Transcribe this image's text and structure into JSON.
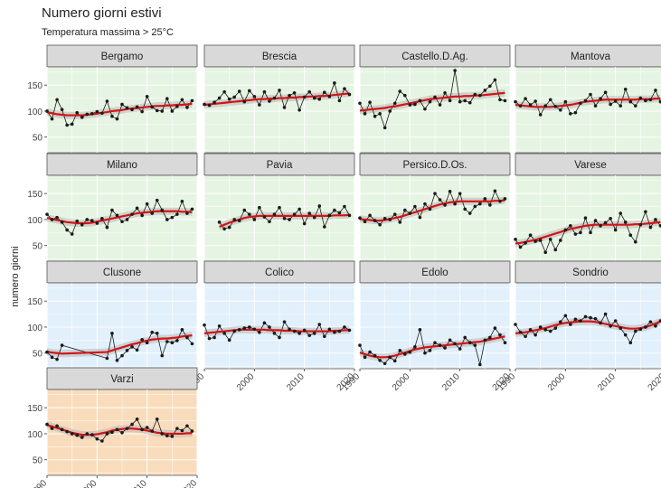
{
  "title": "Numero giorni estivi",
  "subtitle": "Temperatura massima > 25°C",
  "ylabel": "numero giorni",
  "colors": {
    "strip_bg": "#d9d9d9",
    "green_panel": "#e6f4e3",
    "blue_panel": "#e1f0fb",
    "orange_panel": "#f9dcbc",
    "line": "#1a1a1a",
    "smooth": "#d31414",
    "ribbon": "#b8b8b8",
    "grid": "#ffffff"
  },
  "chart_data": {
    "type": "line",
    "facets": true,
    "xlim": [
      1990,
      2020
    ],
    "ylim": [
      20,
      185
    ],
    "x_ticks": [
      1990,
      2000,
      2010,
      2020
    ],
    "y_ticks": [
      50,
      100,
      150
    ],
    "grid": true,
    "panels": [
      {
        "name": "Bergamo",
        "group": "green",
        "x": [
          1990,
          1991,
          1992,
          1993,
          1994,
          1995,
          1996,
          1997,
          1998,
          1999,
          2000,
          2001,
          2002,
          2003,
          2004,
          2005,
          2006,
          2007,
          2008,
          2009,
          2010,
          2011,
          2012,
          2013,
          2014,
          2015,
          2016,
          2017,
          2018,
          2019
        ],
        "values": [
          100,
          85,
          122,
          103,
          73,
          75,
          97,
          88,
          94,
          95,
          99,
          96,
          119,
          90,
          85,
          113,
          106,
          103,
          108,
          99,
          128,
          108,
          101,
          100,
          124,
          100,
          109,
          122,
          107,
          120
        ],
        "smooth": [
          98,
          96,
          94,
          93,
          92,
          92,
          92,
          92,
          93,
          94,
          95,
          97,
          98,
          100,
          101,
          102,
          104,
          105,
          106,
          107,
          108,
          109,
          110,
          110,
          111,
          111,
          112,
          112,
          113,
          114
        ]
      },
      {
        "name": "Brescia",
        "group": "green",
        "x": [
          1990,
          1991,
          1992,
          1993,
          1994,
          1995,
          1996,
          1997,
          1998,
          1999,
          2000,
          2001,
          2002,
          2003,
          2004,
          2005,
          2006,
          2007,
          2008,
          2009,
          2010,
          2011,
          2012,
          2013,
          2014,
          2015,
          2016,
          2017,
          2018,
          2019
        ],
        "values": [
          113,
          111,
          117,
          125,
          137,
          123,
          127,
          138,
          118,
          139,
          128,
          112,
          137,
          119,
          125,
          140,
          107,
          130,
          135,
          102,
          127,
          137,
          125,
          123,
          136,
          128,
          154,
          120,
          143,
          132
        ],
        "smooth": [
          112,
          113,
          114,
          115,
          116,
          117,
          118,
          119,
          120,
          121,
          122,
          123,
          123,
          124,
          124,
          125,
          125,
          126,
          126,
          127,
          127,
          128,
          128,
          129,
          129,
          130,
          131,
          132,
          133,
          134
        ]
      },
      {
        "name": "Castello.D.Ag.",
        "group": "green",
        "x": [
          1990,
          1991,
          1992,
          1993,
          1994,
          1995,
          1996,
          1997,
          1998,
          1999,
          2000,
          2001,
          2002,
          2003,
          2004,
          2005,
          2006,
          2007,
          2008,
          2009,
          2010,
          2011,
          2012,
          2013,
          2014,
          2015,
          2016,
          2017,
          2018,
          2019
        ],
        "values": [
          115,
          95,
          117,
          90,
          95,
          68,
          100,
          115,
          138,
          130,
          112,
          113,
          120,
          104,
          118,
          127,
          112,
          135,
          120,
          178,
          118,
          120,
          116,
          132,
          130,
          140,
          148,
          160,
          122,
          120
        ],
        "smooth": [
          101,
          102,
          103,
          104,
          105,
          106,
          108,
          109,
          111,
          113,
          115,
          117,
          119,
          121,
          123,
          124,
          125,
          126,
          127,
          128,
          128,
          129,
          129,
          130,
          130,
          131,
          132,
          133,
          134,
          135
        ]
      },
      {
        "name": "Mantova",
        "group": "green",
        "x": [
          1990,
          1991,
          1992,
          1993,
          1994,
          1995,
          1996,
          1997,
          1998,
          1999,
          2000,
          2001,
          2002,
          2003,
          2004,
          2005,
          2006,
          2007,
          2008,
          2009,
          2010,
          2011,
          2012,
          2013,
          2014,
          2015,
          2016,
          2017,
          2018,
          2019
        ],
        "values": [
          118,
          110,
          124,
          112,
          119,
          93,
          110,
          122,
          109,
          102,
          118,
          95,
          97,
          115,
          120,
          132,
          110,
          124,
          136,
          113,
          119,
          110,
          142,
          118,
          110,
          125,
          120,
          122,
          140,
          118
        ],
        "smooth": [
          112,
          111,
          110,
          109,
          108,
          108,
          108,
          108,
          109,
          110,
          111,
          112,
          114,
          116,
          118,
          119,
          120,
          121,
          122,
          122,
          122,
          122,
          122,
          122,
          122,
          123,
          123,
          123,
          124,
          124
        ]
      },
      {
        "name": "Milano",
        "group": "green",
        "x": [
          1990,
          1991,
          1992,
          1993,
          1994,
          1995,
          1996,
          1997,
          1998,
          1999,
          2000,
          2001,
          2002,
          2003,
          2004,
          2005,
          2006,
          2007,
          2008,
          2009,
          2010,
          2011,
          2012,
          2013,
          2014,
          2015,
          2016,
          2017,
          2018,
          2019
        ],
        "values": [
          110,
          100,
          104,
          95,
          80,
          72,
          97,
          90,
          100,
          98,
          93,
          102,
          85,
          118,
          108,
          96,
          100,
          110,
          122,
          108,
          130,
          112,
          137,
          118,
          100,
          104,
          110,
          135,
          112,
          120
        ],
        "smooth": [
          103,
          101,
          99,
          97,
          95,
          94,
          93,
          93,
          93,
          94,
          96,
          98,
          100,
          102,
          104,
          106,
          108,
          110,
          112,
          113,
          114,
          115,
          116,
          116,
          116,
          116,
          116,
          115,
          115,
          114
        ]
      },
      {
        "name": "Pavia",
        "group": "green",
        "x": [
          1993,
          1994,
          1995,
          1996,
          1997,
          1998,
          1999,
          2000,
          2001,
          2002,
          2003,
          2004,
          2005,
          2006,
          2007,
          2008,
          2009,
          2010,
          2011,
          2012,
          2013,
          2014,
          2015,
          2016,
          2017,
          2018,
          2019
        ],
        "values": [
          95,
          82,
          85,
          100,
          98,
          118,
          110,
          100,
          123,
          105,
          96,
          110,
          123,
          102,
          100,
          110,
          120,
          92,
          112,
          104,
          126,
          86,
          108,
          118,
          113,
          125,
          108
        ],
        "smooth": [
          86,
          90,
          94,
          97,
          100,
          103,
          105,
          106,
          107,
          107,
          107,
          107,
          107,
          107,
          107,
          107,
          107,
          107,
          107,
          107,
          107,
          107,
          107,
          108,
          108,
          108,
          109
        ]
      },
      {
        "name": "Persico.D.Os.",
        "group": "green",
        "x": [
          1990,
          1991,
          1992,
          1993,
          1994,
          1995,
          1996,
          1997,
          1998,
          1999,
          2000,
          2001,
          2002,
          2003,
          2004,
          2005,
          2006,
          2007,
          2008,
          2009,
          2010,
          2011,
          2012,
          2013,
          2014,
          2015,
          2016,
          2017,
          2018,
          2019
        ],
        "values": [
          103,
          96,
          108,
          98,
          90,
          102,
          100,
          110,
          95,
          118,
          112,
          125,
          104,
          130,
          120,
          150,
          138,
          128,
          154,
          130,
          150,
          120,
          112,
          125,
          130,
          140,
          128,
          155,
          135,
          140
        ],
        "smooth": [
          101,
          100,
          99,
          98,
          98,
          99,
          101,
          103,
          105,
          108,
          111,
          114,
          117,
          120,
          123,
          126,
          129,
          131,
          133,
          134,
          135,
          135,
          135,
          135,
          135,
          135,
          135,
          136,
          136,
          137
        ]
      },
      {
        "name": "Varese",
        "group": "green",
        "x": [
          1990,
          1991,
          1992,
          1993,
          1994,
          1995,
          1996,
          1997,
          1998,
          1999,
          2000,
          2001,
          2002,
          2003,
          2004,
          2005,
          2006,
          2007,
          2008,
          2009,
          2010,
          2011,
          2012,
          2013,
          2014,
          2015,
          2016,
          2017,
          2018,
          2019
        ],
        "values": [
          62,
          47,
          55,
          70,
          58,
          60,
          37,
          62,
          42,
          60,
          80,
          88,
          72,
          75,
          103,
          75,
          98,
          88,
          94,
          102,
          80,
          112,
          95,
          70,
          57,
          90,
          115,
          85,
          100,
          88
        ],
        "smooth": [
          54,
          55,
          57,
          59,
          61,
          64,
          67,
          70,
          73,
          76,
          79,
          82,
          84,
          86,
          88,
          89,
          90,
          90,
          90,
          90,
          90,
          90,
          90,
          90,
          91,
          91,
          92,
          93,
          94,
          95
        ]
      },
      {
        "name": "Clusone",
        "group": "blue",
        "x": [
          1990,
          1991,
          1992,
          1993,
          2002,
          2003,
          2004,
          2005,
          2006,
          2007,
          2008,
          2009,
          2010,
          2011,
          2012,
          2013,
          2014,
          2015,
          2016,
          2017,
          2018,
          2019
        ],
        "values": [
          52,
          42,
          38,
          65,
          40,
          88,
          36,
          45,
          55,
          62,
          56,
          76,
          70,
          90,
          88,
          45,
          72,
          70,
          74,
          95,
          80,
          68
        ],
        "smooth": [
          53,
          51,
          50,
          49,
          52,
          55,
          58,
          61,
          64,
          67,
          69,
          72,
          74,
          76,
          77,
          78,
          78,
          79,
          80,
          82,
          83,
          84
        ]
      },
      {
        "name": "Colico",
        "group": "blue",
        "x": [
          1990,
          1991,
          1992,
          1993,
          1994,
          1995,
          1996,
          1997,
          1998,
          1999,
          2000,
          2001,
          2002,
          2003,
          2004,
          2005,
          2006,
          2007,
          2008,
          2009,
          2010,
          2011,
          2012,
          2013,
          2014,
          2015,
          2016,
          2017,
          2018,
          2019
        ],
        "values": [
          104,
          78,
          80,
          102,
          88,
          75,
          92,
          95,
          98,
          100,
          96,
          90,
          108,
          100,
          88,
          80,
          110,
          96,
          92,
          88,
          94,
          84,
          88,
          105,
          82,
          96,
          90,
          92,
          100,
          94
        ],
        "smooth": [
          88,
          89,
          90,
          91,
          92,
          93,
          94,
          95,
          95,
          95,
          95,
          95,
          95,
          94,
          94,
          94,
          93,
          93,
          93,
          92,
          92,
          92,
          92,
          92,
          92,
          92,
          93,
          93,
          94,
          94
        ]
      },
      {
        "name": "Edolo",
        "group": "blue",
        "x": [
          1990,
          1991,
          1992,
          1993,
          1994,
          1995,
          1996,
          1997,
          1998,
          1999,
          2000,
          2001,
          2002,
          2003,
          2004,
          2005,
          2006,
          2007,
          2008,
          2009,
          2010,
          2011,
          2012,
          2013,
          2014,
          2015,
          2016,
          2017,
          2018,
          2019
        ],
        "values": [
          65,
          42,
          52,
          45,
          36,
          30,
          42,
          35,
          55,
          48,
          52,
          62,
          95,
          50,
          55,
          70,
          65,
          60,
          75,
          68,
          58,
          80,
          70,
          65,
          28,
          75,
          80,
          98,
          85,
          70
        ],
        "smooth": [
          51,
          48,
          45,
          43,
          42,
          42,
          43,
          45,
          48,
          51,
          54,
          57,
          59,
          61,
          62,
          63,
          64,
          65,
          66,
          67,
          68,
          69,
          70,
          71,
          72,
          74,
          76,
          78,
          80,
          82
        ]
      },
      {
        "name": "Sondrio",
        "group": "blue",
        "x": [
          1990,
          1991,
          1992,
          1993,
          1994,
          1995,
          1996,
          1997,
          1998,
          1999,
          2000,
          2001,
          2002,
          2003,
          2004,
          2005,
          2006,
          2007,
          2008,
          2009,
          2010,
          2011,
          2012,
          2013,
          2014,
          2015,
          2016,
          2017,
          2018,
          2019
        ],
        "values": [
          105,
          90,
          82,
          95,
          85,
          100,
          95,
          92,
          98,
          110,
          122,
          105,
          115,
          112,
          120,
          118,
          116,
          108,
          125,
          102,
          112,
          98,
          85,
          70,
          92,
          96,
          100,
          110,
          102,
          112
        ],
        "smooth": [
          88,
          89,
          90,
          92,
          94,
          96,
          98,
          101,
          104,
          106,
          108,
          109,
          110,
          111,
          111,
          111,
          110,
          108,
          106,
          104,
          102,
          100,
          98,
          97,
          97,
          98,
          100,
          103,
          107,
          111
        ]
      },
      {
        "name": "Varzi",
        "group": "orange",
        "x": [
          1990,
          1991,
          1992,
          1993,
          1994,
          1995,
          1996,
          1997,
          1998,
          1999,
          2000,
          2001,
          2002,
          2003,
          2004,
          2005,
          2006,
          2007,
          2008,
          2009,
          2010,
          2011,
          2012,
          2013,
          2014,
          2015,
          2016,
          2017,
          2018,
          2019
        ],
        "values": [
          118,
          110,
          115,
          108,
          104,
          100,
          97,
          93,
          100,
          98,
          90,
          86,
          100,
          103,
          108,
          102,
          110,
          118,
          128,
          108,
          112,
          105,
          128,
          100,
          96,
          95,
          110,
          106,
          115,
          105
        ],
        "smooth": [
          117,
          114,
          111,
          108,
          105,
          102,
          100,
          98,
          98,
          98,
          99,
          101,
          103,
          106,
          108,
          109,
          110,
          110,
          109,
          108,
          106,
          104,
          102,
          101,
          100,
          100,
          100,
          100,
          101,
          101
        ]
      }
    ]
  }
}
